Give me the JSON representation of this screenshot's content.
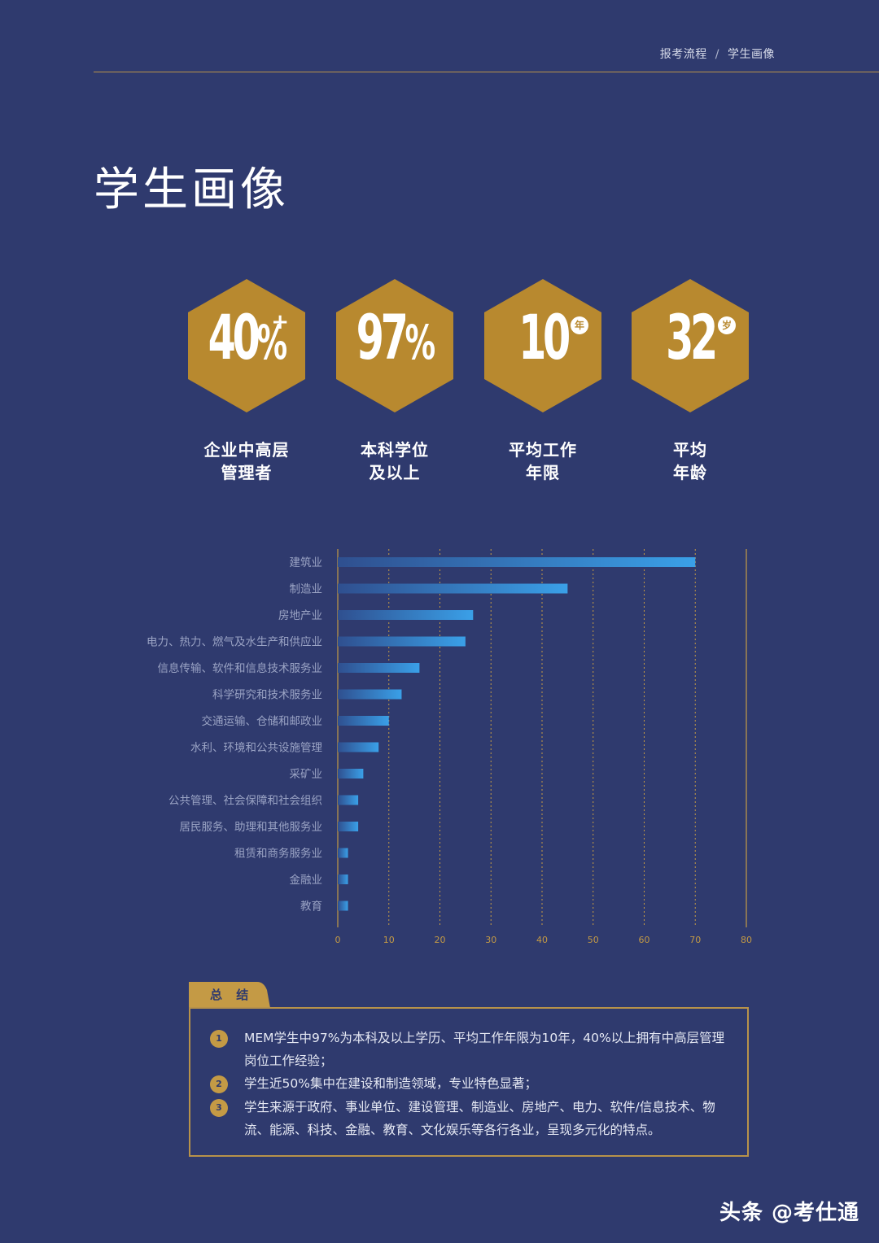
{
  "header": {
    "breadcrumb": [
      "报考流程",
      "学生画像"
    ],
    "separator": "/"
  },
  "page_title": "学生画像",
  "stats": [
    {
      "value": "40",
      "unit": "%",
      "suffix": "+",
      "suffix_type": "plus",
      "label_lines": [
        "企业中高层",
        "管理者"
      ]
    },
    {
      "value": "97",
      "unit": "%",
      "suffix": "",
      "suffix_type": "none",
      "label_lines": [
        "本科学位",
        "及以上"
      ]
    },
    {
      "value": "10",
      "unit": "",
      "suffix": "年",
      "suffix_type": "circle",
      "label_lines": [
        "平均工作",
        "年限"
      ]
    },
    {
      "value": "32",
      "unit": "",
      "suffix": "岁",
      "suffix_type": "circle",
      "label_lines": [
        "平均",
        "年龄"
      ]
    }
  ],
  "chart_data": {
    "type": "bar",
    "orientation": "horizontal",
    "categories": [
      "建筑业",
      "制造业",
      "房地产业",
      "电力、热力、燃气及水生产和供应业",
      "信息传输、软件和信息技术服务业",
      "科学研究和技术服务业",
      "交通运输、仓储和邮政业",
      "水利、环境和公共设施管理",
      "采矿业",
      "公共管理、社会保障和社会组织",
      "居民服务、助理和其他服务业",
      "租赁和商务服务业",
      "金融业",
      "教育"
    ],
    "values": [
      70,
      45,
      26.5,
      25,
      16,
      12.5,
      10,
      8,
      5,
      4,
      4,
      2,
      2,
      2
    ],
    "xticks": [
      "0",
      "10",
      "20",
      "30",
      "40",
      "50",
      "60",
      "70",
      "80"
    ],
    "xlim": [
      0,
      80
    ],
    "grid": true,
    "title": "",
    "xlabel": "",
    "ylabel": ""
  },
  "summary": {
    "title": "总 结",
    "items": [
      {
        "num": "1",
        "text": "MEM学生中97%为本科及以上学历、平均工作年限为10年，40%以上拥有中高层管理岗位工作经验；"
      },
      {
        "num": "2",
        "text": "学生近50%集中在建设和制造领域，专业特色显著；"
      },
      {
        "num": "3",
        "text": "学生来源于政府、事业单位、建设管理、制造业、房地产、电力、软件/信息技术、物流、能源、科技、金融、教育、文化娱乐等各行各业，呈现多元化的特点。"
      }
    ]
  },
  "watermark": "头条 @考仕通",
  "colors": {
    "background": "#2f3a6e",
    "gold": "#b8924a",
    "hex_fill": "#b8892f",
    "bar_start": "#2f4f8f",
    "bar_end": "#3aa0e8"
  }
}
